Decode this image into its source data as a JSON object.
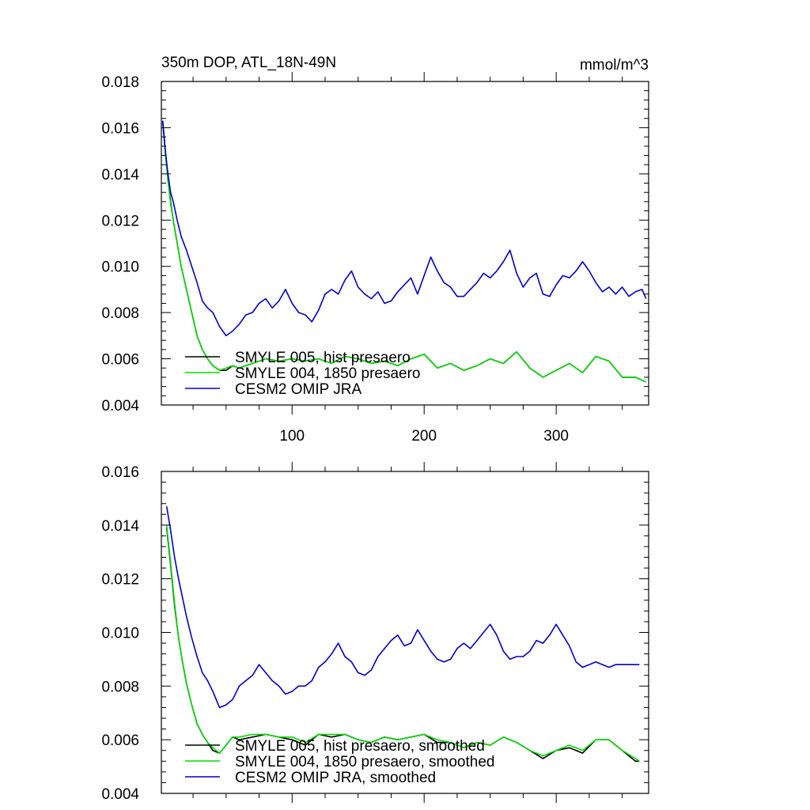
{
  "chart_data": [
    {
      "type": "line",
      "title": "350m DOP, ATL_18N-49N",
      "units": "mmol/m^3",
      "xlabel": "",
      "ylabel": "",
      "xlim": [
        1,
        370
      ],
      "ylim": [
        0.004,
        0.018
      ],
      "xticks": [
        100,
        200,
        300
      ],
      "xtick_labels": [
        "100",
        "200",
        "300"
      ],
      "yticks": [
        0.004,
        0.006,
        0.008,
        0.01,
        0.012,
        0.014,
        0.016,
        0.018
      ],
      "ytick_labels": [
        "0.004",
        "0.006",
        "0.008",
        "0.010",
        "0.012",
        "0.014",
        "0.016",
        "0.018"
      ],
      "grid": false,
      "legend_position": "bottom-left",
      "series": [
        {
          "name": "SMYLE 005, hist presaero",
          "color": "#000000",
          "x": [
            2,
            4,
            6,
            8,
            10,
            13,
            16,
            20,
            24,
            28,
            32,
            36,
            40,
            45,
            50,
            55,
            60,
            70,
            80,
            90,
            100,
            110,
            120,
            130,
            140,
            150,
            160,
            170,
            180,
            190,
            200,
            210,
            220,
            230,
            240,
            250,
            260,
            270,
            280,
            290,
            300,
            310,
            320,
            330,
            340,
            350,
            360,
            368
          ],
          "y": [
            0.0163,
            0.015,
            0.0138,
            0.0128,
            0.012,
            0.011,
            0.01,
            0.009,
            0.008,
            0.007,
            0.0064,
            0.006,
            0.0057,
            0.0055,
            0.0055,
            0.0057,
            0.0056,
            0.0058,
            0.006,
            0.0059,
            0.006,
            0.0059,
            0.006,
            0.0058,
            0.0061,
            0.006,
            0.0058,
            0.0059,
            0.0057,
            0.006,
            0.0062,
            0.0056,
            0.0058,
            0.0055,
            0.0057,
            0.006,
            0.0058,
            0.0063,
            0.0056,
            0.0052,
            0.0055,
            0.0058,
            0.0054,
            0.0061,
            0.0059,
            0.0052,
            0.0052,
            0.005
          ]
        },
        {
          "name": "SMYLE 004, 1850 presaero",
          "color": "#00dd00",
          "x": [
            2,
            4,
            6,
            8,
            10,
            13,
            16,
            20,
            24,
            28,
            32,
            36,
            40,
            45,
            50,
            55,
            60,
            70,
            80,
            90,
            100,
            110,
            120,
            130,
            140,
            150,
            160,
            170,
            180,
            190,
            200,
            210,
            220,
            230,
            240,
            250,
            260,
            270,
            280,
            290,
            300,
            310,
            320,
            330,
            340,
            350,
            360,
            368
          ],
          "y": [
            0.0162,
            0.0149,
            0.0137,
            0.0127,
            0.012,
            0.011,
            0.01,
            0.009,
            0.008,
            0.007,
            0.0064,
            0.006,
            0.0057,
            0.0055,
            0.0056,
            0.0057,
            0.0056,
            0.0058,
            0.006,
            0.0059,
            0.006,
            0.0059,
            0.006,
            0.0058,
            0.0061,
            0.006,
            0.0058,
            0.0059,
            0.0057,
            0.006,
            0.0062,
            0.0056,
            0.0058,
            0.0055,
            0.0057,
            0.006,
            0.0058,
            0.0063,
            0.0056,
            0.0052,
            0.0055,
            0.0058,
            0.0054,
            0.0061,
            0.0059,
            0.0052,
            0.0052,
            0.005
          ]
        },
        {
          "name": "CESM2 OMIP JRA",
          "color": "#0000cc",
          "x": [
            2,
            4,
            6,
            8,
            10,
            13,
            16,
            20,
            24,
            28,
            32,
            36,
            40,
            45,
            50,
            55,
            60,
            65,
            70,
            75,
            80,
            85,
            90,
            95,
            100,
            105,
            110,
            115,
            120,
            125,
            130,
            135,
            140,
            145,
            150,
            155,
            160,
            165,
            170,
            175,
            180,
            185,
            190,
            195,
            200,
            205,
            210,
            215,
            220,
            225,
            230,
            235,
            240,
            245,
            250,
            255,
            260,
            265,
            270,
            275,
            280,
            285,
            290,
            295,
            300,
            305,
            310,
            315,
            320,
            325,
            330,
            335,
            340,
            345,
            350,
            355,
            360,
            365,
            368
          ],
          "y": [
            0.0163,
            0.015,
            0.014,
            0.0132,
            0.0128,
            0.012,
            0.0113,
            0.0107,
            0.01,
            0.0093,
            0.0085,
            0.0082,
            0.008,
            0.0074,
            0.007,
            0.0072,
            0.0075,
            0.0079,
            0.008,
            0.0084,
            0.0086,
            0.0082,
            0.0085,
            0.009,
            0.0084,
            0.008,
            0.0079,
            0.0076,
            0.0081,
            0.0088,
            0.009,
            0.0088,
            0.0094,
            0.0098,
            0.0091,
            0.0088,
            0.0086,
            0.0089,
            0.0084,
            0.0085,
            0.0089,
            0.0092,
            0.0095,
            0.0088,
            0.0096,
            0.0104,
            0.0098,
            0.0093,
            0.0091,
            0.0087,
            0.0087,
            0.009,
            0.0093,
            0.0097,
            0.0095,
            0.0098,
            0.0102,
            0.0107,
            0.0097,
            0.0091,
            0.0095,
            0.0097,
            0.0088,
            0.0087,
            0.0092,
            0.0096,
            0.0095,
            0.0098,
            0.0102,
            0.0098,
            0.0093,
            0.0089,
            0.0091,
            0.0088,
            0.0091,
            0.0087,
            0.0089,
            0.009,
            0.0086
          ]
        }
      ]
    },
    {
      "type": "line",
      "title": "",
      "xlabel": "",
      "ylabel": "",
      "xlim": [
        1,
        370
      ],
      "ylim": [
        0.004,
        0.016
      ],
      "xticks": [
        100,
        200,
        300
      ],
      "yticks": [
        0.004,
        0.006,
        0.008,
        0.01,
        0.012,
        0.014,
        0.016
      ],
      "ytick_labels": [
        "0.004",
        "0.006",
        "0.008",
        "0.010",
        "0.012",
        "0.014",
        "0.016"
      ],
      "grid": false,
      "legend_position": "bottom-left",
      "series": [
        {
          "name": "SMYLE 005, hist presaero, smoothed",
          "color": "#000000",
          "x": [
            5,
            8,
            11,
            14,
            17,
            20,
            24,
            28,
            32,
            36,
            40,
            45,
            50,
            55,
            60,
            70,
            80,
            90,
            100,
            110,
            120,
            130,
            140,
            150,
            160,
            170,
            180,
            190,
            200,
            210,
            220,
            230,
            240,
            250,
            260,
            270,
            280,
            290,
            300,
            310,
            320,
            330,
            340,
            350,
            360,
            363
          ],
          "y": [
            0.0139,
            0.0125,
            0.011,
            0.0098,
            0.0089,
            0.0081,
            0.0073,
            0.0066,
            0.0062,
            0.0059,
            0.0056,
            0.0055,
            0.0058,
            0.0061,
            0.006,
            0.0061,
            0.0062,
            0.0061,
            0.006,
            0.0058,
            0.0062,
            0.0061,
            0.0062,
            0.006,
            0.0059,
            0.0061,
            0.006,
            0.0061,
            0.0062,
            0.0059,
            0.0059,
            0.0057,
            0.0059,
            0.0058,
            0.0061,
            0.0059,
            0.0056,
            0.0053,
            0.0056,
            0.0057,
            0.0055,
            0.006,
            0.006,
            0.0056,
            0.0052,
            0.0052
          ]
        },
        {
          "name": "SMYLE 004, 1850 presaero, smoothed",
          "color": "#00dd00",
          "x": [
            5,
            8,
            11,
            14,
            17,
            20,
            24,
            28,
            32,
            36,
            40,
            45,
            50,
            55,
            60,
            70,
            80,
            90,
            100,
            110,
            120,
            130,
            140,
            150,
            160,
            170,
            180,
            190,
            200,
            210,
            220,
            230,
            240,
            250,
            260,
            270,
            280,
            290,
            300,
            310,
            320,
            330,
            340,
            350,
            360,
            363
          ],
          "y": [
            0.014,
            0.0126,
            0.0111,
            0.0098,
            0.0089,
            0.0081,
            0.0073,
            0.0066,
            0.0062,
            0.0059,
            0.0057,
            0.0055,
            0.0058,
            0.0061,
            0.0061,
            0.0062,
            0.0062,
            0.0061,
            0.0061,
            0.0059,
            0.0062,
            0.0062,
            0.0062,
            0.006,
            0.0059,
            0.0061,
            0.006,
            0.0061,
            0.0062,
            0.006,
            0.0059,
            0.0057,
            0.0059,
            0.0058,
            0.0061,
            0.0059,
            0.0056,
            0.0054,
            0.0056,
            0.0058,
            0.0056,
            0.006,
            0.006,
            0.0056,
            0.0053,
            0.0052
          ]
        },
        {
          "name": "CESM2 OMIP JRA, smoothed",
          "color": "#0000cc",
          "x": [
            5,
            8,
            11,
            14,
            17,
            20,
            24,
            28,
            32,
            36,
            40,
            45,
            50,
            55,
            60,
            65,
            70,
            75,
            80,
            85,
            90,
            95,
            100,
            105,
            110,
            115,
            120,
            125,
            130,
            135,
            140,
            145,
            150,
            155,
            160,
            165,
            170,
            175,
            180,
            185,
            190,
            195,
            200,
            205,
            210,
            215,
            220,
            225,
            230,
            235,
            240,
            245,
            250,
            255,
            260,
            265,
            270,
            275,
            280,
            285,
            290,
            295,
            300,
            305,
            310,
            315,
            320,
            325,
            330,
            335,
            340,
            345,
            350,
            355,
            360,
            363
          ],
          "y": [
            0.0147,
            0.0138,
            0.0128,
            0.012,
            0.0113,
            0.0106,
            0.0098,
            0.0091,
            0.0085,
            0.0082,
            0.0078,
            0.0072,
            0.0073,
            0.0075,
            0.008,
            0.0082,
            0.0084,
            0.0088,
            0.0085,
            0.0082,
            0.008,
            0.0077,
            0.0078,
            0.008,
            0.008,
            0.0082,
            0.0087,
            0.0089,
            0.0092,
            0.0096,
            0.0091,
            0.0089,
            0.0085,
            0.0084,
            0.0086,
            0.0091,
            0.0094,
            0.0097,
            0.0099,
            0.0095,
            0.0096,
            0.0101,
            0.0097,
            0.0093,
            0.009,
            0.0089,
            0.009,
            0.0094,
            0.0096,
            0.0094,
            0.0097,
            0.01,
            0.0103,
            0.0099,
            0.0093,
            0.009,
            0.0091,
            0.0091,
            0.0093,
            0.0097,
            0.0096,
            0.0099,
            0.0103,
            0.0099,
            0.0095,
            0.0089,
            0.0087,
            0.0088,
            0.0089,
            0.0088,
            0.0087,
            0.0088,
            0.0088,
            0.0088,
            0.0088,
            0.0088
          ]
        }
      ]
    }
  ]
}
